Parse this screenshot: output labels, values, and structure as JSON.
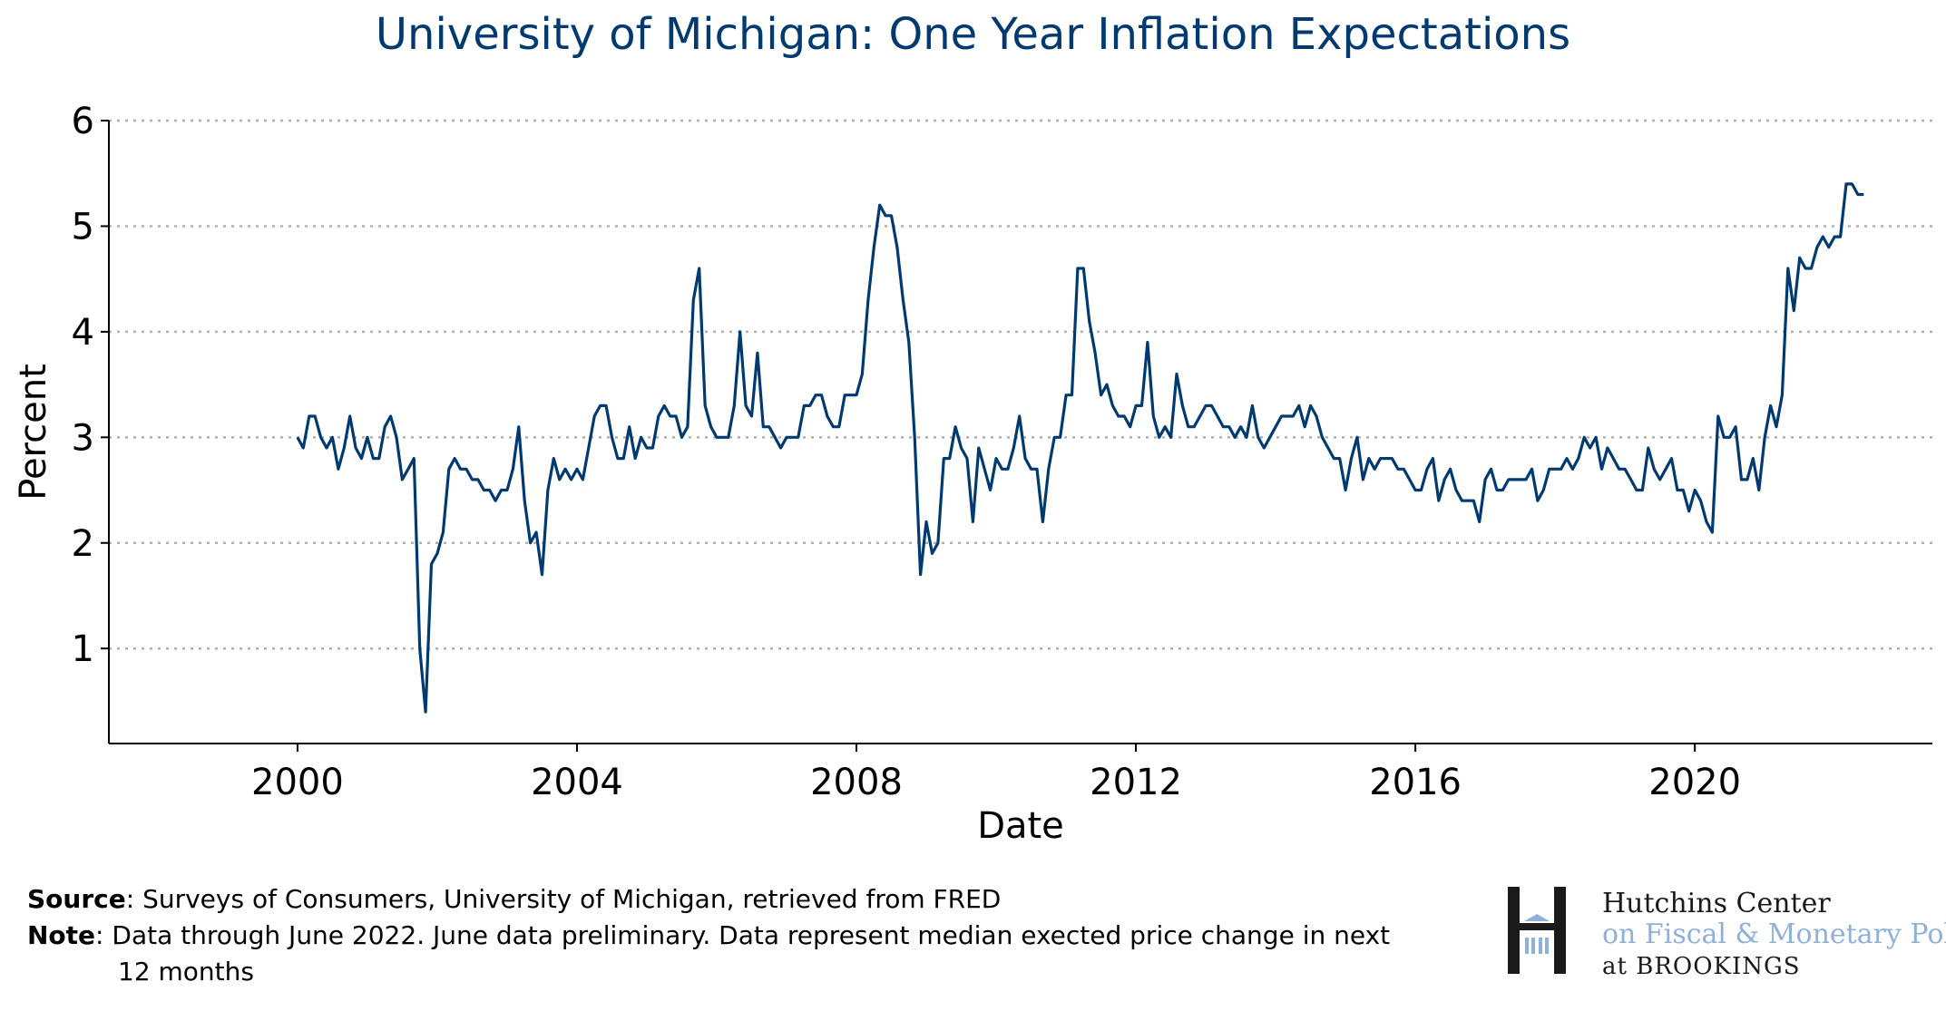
{
  "colors": {
    "line": "#003a70",
    "title": "#003a70",
    "grid": "#b0b0b0",
    "logo_blue": "#8fb0d9"
  },
  "chart_data": {
    "type": "line",
    "title": "University of Michigan: One Year Inflation Expectations",
    "xlabel": "Date",
    "ylabel": "Percent",
    "xlim": [
      1997.3,
      2023.4
    ],
    "ylim": [
      0,
      6
    ],
    "y_display_min": 0.1,
    "xticks": [
      2000,
      2004,
      2008,
      2012,
      2016,
      2020
    ],
    "yticks": [
      1,
      2,
      3,
      4,
      5,
      6
    ],
    "grid": "horizontal dotted",
    "series": [
      {
        "start": 2000.0,
        "step_months": 1,
        "values": [
          3.0,
          2.9,
          3.2,
          3.2,
          3.0,
          2.9,
          3.0,
          2.7,
          2.9,
          3.2,
          2.9,
          2.8,
          3.0,
          2.8,
          2.8,
          3.1,
          3.2,
          3.0,
          2.6,
          2.7,
          2.8,
          1.0,
          0.4,
          1.8,
          1.9,
          2.1,
          2.7,
          2.8,
          2.7,
          2.7,
          2.6,
          2.6,
          2.5,
          2.5,
          2.4,
          2.5,
          2.5,
          2.7,
          3.1,
          2.4,
          2.0,
          2.1,
          1.7,
          2.5,
          2.8,
          2.6,
          2.7,
          2.6,
          2.7,
          2.6,
          2.9,
          3.2,
          3.3,
          3.3,
          3.0,
          2.8,
          2.8,
          3.1,
          2.8,
          3.0,
          2.9,
          2.9,
          3.2,
          3.3,
          3.2,
          3.2,
          3.0,
          3.1,
          4.3,
          4.6,
          3.3,
          3.1,
          3.0,
          3.0,
          3.0,
          3.3,
          4.0,
          3.3,
          3.2,
          3.8,
          3.1,
          3.1,
          3.0,
          2.9,
          3.0,
          3.0,
          3.0,
          3.3,
          3.3,
          3.4,
          3.4,
          3.2,
          3.1,
          3.1,
          3.4,
          3.4,
          3.4,
          3.6,
          4.3,
          4.8,
          5.2,
          5.1,
          5.1,
          4.8,
          4.3,
          3.9,
          3.0,
          1.7,
          2.2,
          1.9,
          2.0,
          2.8,
          2.8,
          3.1,
          2.9,
          2.8,
          2.2,
          2.9,
          2.7,
          2.5,
          2.8,
          2.7,
          2.7,
          2.9,
          3.2,
          2.8,
          2.7,
          2.7,
          2.2,
          2.7,
          3.0,
          3.0,
          3.4,
          3.4,
          4.6,
          4.6,
          4.1,
          3.8,
          3.4,
          3.5,
          3.3,
          3.2,
          3.2,
          3.1,
          3.3,
          3.3,
          3.9,
          3.2,
          3.0,
          3.1,
          3.0,
          3.6,
          3.3,
          3.1,
          3.1,
          3.2,
          3.3,
          3.3,
          3.2,
          3.1,
          3.1,
          3.0,
          3.1,
          3.0,
          3.3,
          3.0,
          2.9,
          3.0,
          3.1,
          3.2,
          3.2,
          3.2,
          3.3,
          3.1,
          3.3,
          3.2,
          3.0,
          2.9,
          2.8,
          2.8,
          2.5,
          2.8,
          3.0,
          2.6,
          2.8,
          2.7,
          2.8,
          2.8,
          2.8,
          2.7,
          2.7,
          2.6,
          2.5,
          2.5,
          2.7,
          2.8,
          2.4,
          2.6,
          2.7,
          2.5,
          2.4,
          2.4,
          2.4,
          2.2,
          2.6,
          2.7,
          2.5,
          2.5,
          2.6,
          2.6,
          2.6,
          2.6,
          2.7,
          2.4,
          2.5,
          2.7,
          2.7,
          2.7,
          2.8,
          2.7,
          2.8,
          3.0,
          2.9,
          3.0,
          2.7,
          2.9,
          2.8,
          2.7,
          2.7,
          2.6,
          2.5,
          2.5,
          2.9,
          2.7,
          2.6,
          2.7,
          2.8,
          2.5,
          2.5,
          2.3,
          2.5,
          2.4,
          2.2,
          2.1,
          3.2,
          3.0,
          3.0,
          3.1,
          2.6,
          2.6,
          2.8,
          2.5,
          3.0,
          3.3,
          3.1,
          3.4,
          4.6,
          4.2,
          4.7,
          4.6,
          4.6,
          4.8,
          4.9,
          4.8,
          4.9,
          4.9,
          5.4,
          5.4,
          5.3,
          5.3
        ]
      }
    ]
  },
  "notes": {
    "source_key": "Source",
    "source_text": ": Surveys of Consumers, University of Michigan, retrieved from FRED",
    "note_key": "Note",
    "note_text": ": Data through June 2022. June data preliminary. Data represent median exected price change in next",
    "note_text_cont": "12 months"
  },
  "logo": {
    "line1": "Hutchins Center",
    "line2": "on Fiscal & Monetary Policy",
    "line3": "at BROOKINGS"
  }
}
